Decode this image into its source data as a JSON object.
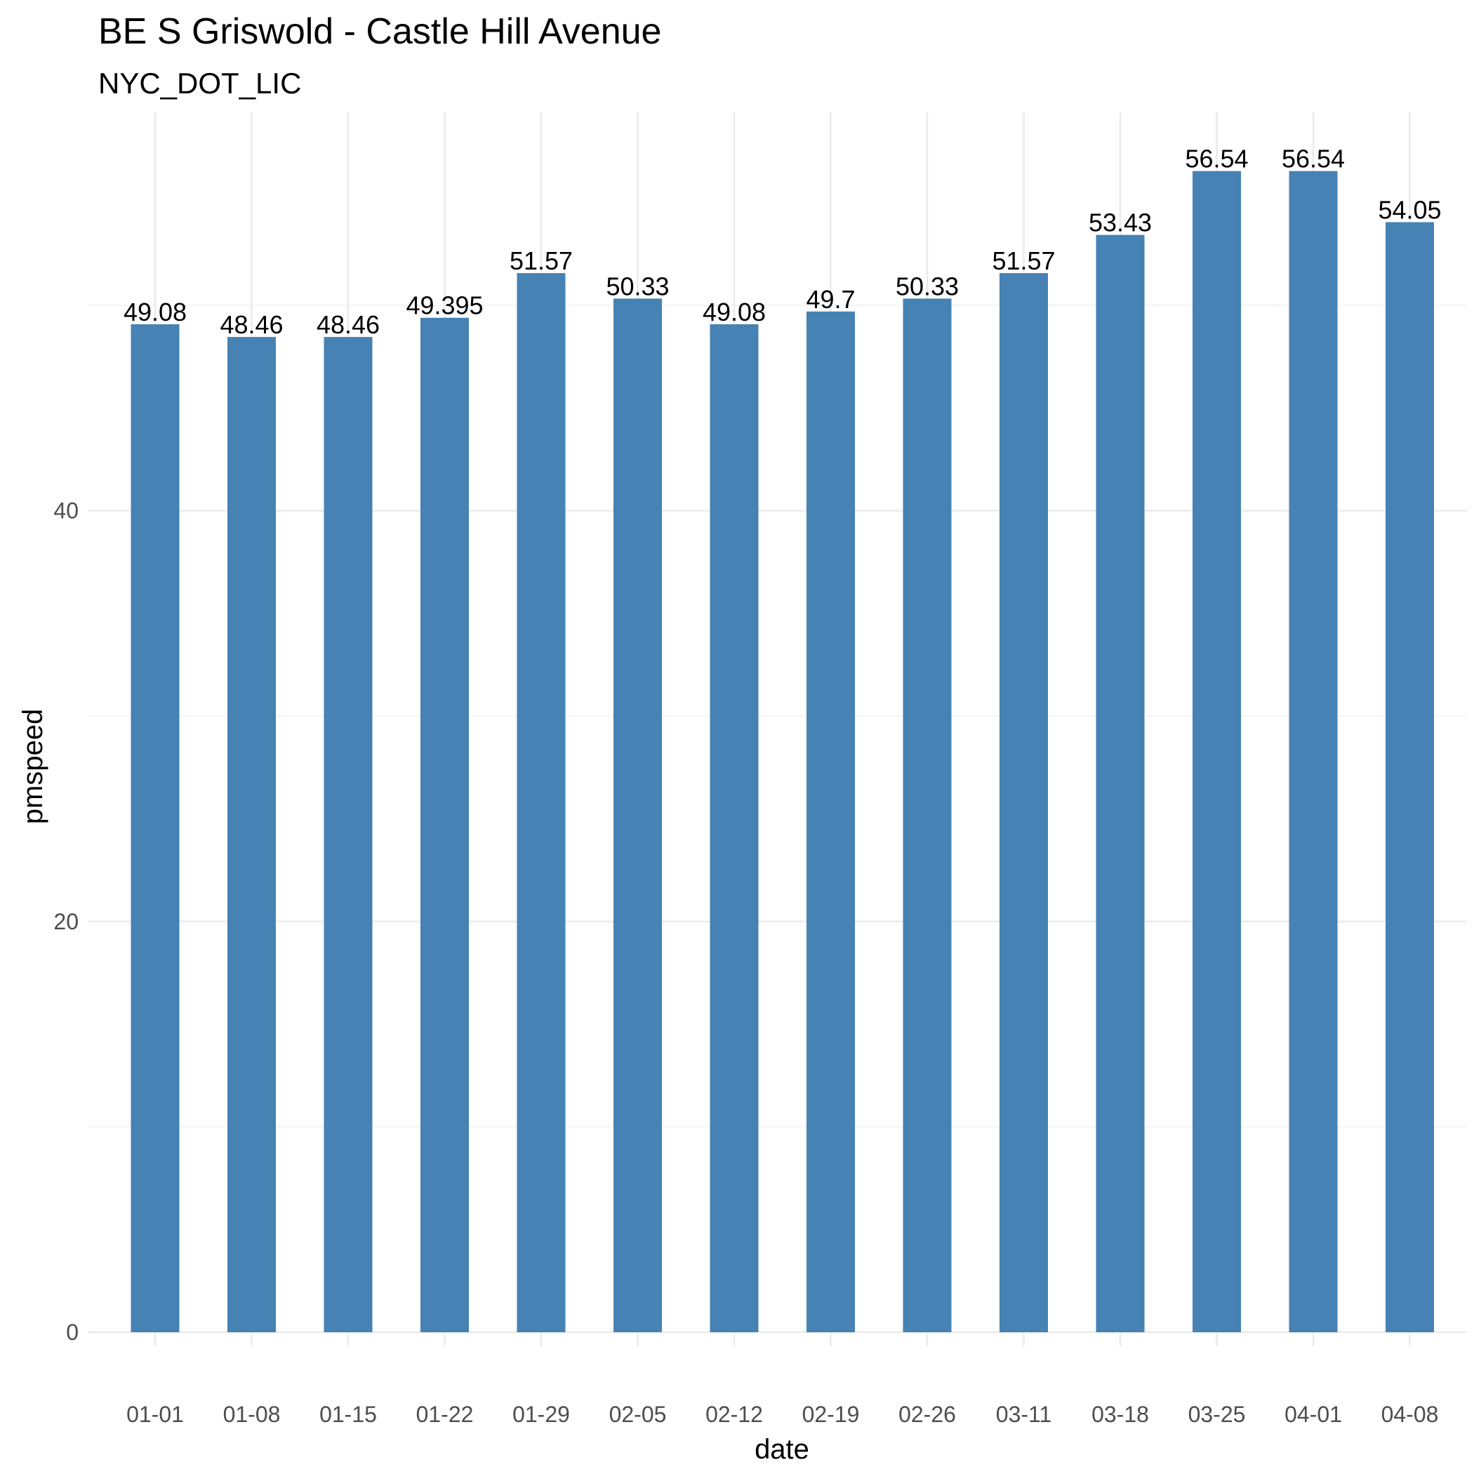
{
  "chart_data": {
    "type": "bar",
    "title": "BE S Griswold - Castle Hill Avenue",
    "subtitle": "NYC_DOT_LIC",
    "xlabel": "date",
    "ylabel": "pmspeed",
    "categories": [
      "01-01",
      "01-08",
      "01-15",
      "01-22",
      "01-29",
      "02-05",
      "02-12",
      "02-19",
      "02-26",
      "03-11",
      "03-18",
      "03-25",
      "04-01",
      "04-08"
    ],
    "values": [
      49.08,
      48.46,
      48.46,
      49.395,
      51.57,
      50.33,
      49.08,
      49.7,
      50.33,
      51.57,
      53.43,
      56.54,
      56.54,
      54.05
    ],
    "data_labels": [
      "49.08",
      "48.46",
      "48.46",
      "49.395",
      "51.57",
      "50.33",
      "49.08",
      "49.7",
      "50.33",
      "51.57",
      "53.43",
      "56.54",
      "56.54",
      "54.05"
    ],
    "ylim": [
      0,
      59.4
    ],
    "yticks": [
      0,
      20,
      40
    ],
    "ytick_labels": [
      "0",
      "20",
      "40"
    ],
    "grid": true,
    "legend": "none",
    "bar_color": "#4682B4"
  }
}
